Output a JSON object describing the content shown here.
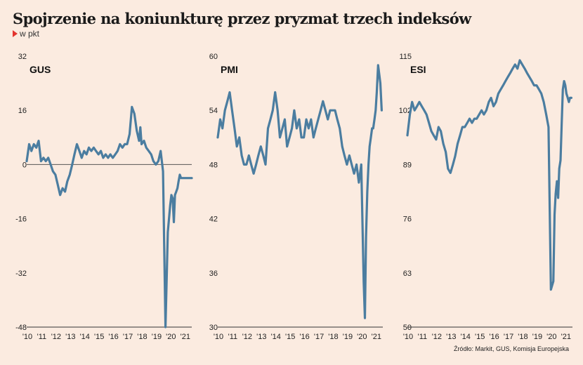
{
  "title": "Spojrzenie na koniunkturę przez pryzmat trzech indeksów",
  "unit": "w pkt",
  "source": "Źródło: Markit, GUS, Komisja Europejska",
  "colors": {
    "line": "#4b7da0",
    "background": "#fbebe0",
    "baseline": "#555555",
    "accent": "#e3342f"
  },
  "chart_data": [
    {
      "type": "line",
      "label": "GUS",
      "yticks": [
        "32",
        "16",
        "0",
        "-16",
        "-32",
        "-48"
      ],
      "ylim": [
        -48,
        32
      ],
      "xticks": [
        "'10",
        "'11",
        "'12",
        "'13",
        "'14",
        "'15",
        "'16",
        "'17",
        "'18",
        "'19",
        "'20",
        "'21"
      ],
      "baseline": 0,
      "series": [
        {
          "x": [
            2010.0,
            2010.17,
            2010.33,
            2010.5,
            2010.67,
            2010.83,
            2011.0,
            2011.17,
            2011.33,
            2011.5,
            2011.67,
            2011.83,
            2012.0,
            2012.17,
            2012.33,
            2012.5,
            2012.67,
            2012.83,
            2013.0,
            2013.17,
            2013.33,
            2013.5,
            2013.67,
            2013.83,
            2014.0,
            2014.17,
            2014.33,
            2014.5,
            2014.67,
            2014.83,
            2015.0,
            2015.17,
            2015.33,
            2015.5,
            2015.67,
            2015.83,
            2016.0,
            2016.17,
            2016.33,
            2016.5,
            2016.67,
            2016.83,
            2017.0,
            2017.17,
            2017.33,
            2017.5,
            2017.67,
            2017.83,
            2017.92,
            2018.0,
            2018.17,
            2018.33,
            2018.5,
            2018.67,
            2018.83,
            2019.0,
            2019.17,
            2019.33,
            2019.5,
            2019.67,
            2019.83,
            2020.0,
            2020.08,
            2020.17,
            2020.25,
            2020.33,
            2020.42,
            2020.5,
            2020.58,
            2020.67,
            2020.75,
            2020.83,
            2020.92,
            2021.0,
            2021.17,
            2021.33,
            2021.5
          ],
          "values": [
            1,
            6,
            4,
            6,
            5,
            7,
            1,
            2,
            1,
            2,
            0,
            -2,
            -3,
            -6,
            -9,
            -7,
            -8,
            -5,
            -3,
            0,
            3,
            6,
            4,
            2,
            4,
            3,
            5,
            4,
            5,
            4,
            3,
            4,
            2,
            3,
            2,
            3,
            2,
            3,
            4,
            6,
            5,
            6,
            6,
            9,
            17,
            15,
            10,
            7,
            11,
            6,
            7,
            5,
            4,
            3,
            1,
            0,
            1,
            4,
            -2,
            -48,
            -20,
            -12,
            -9,
            -10,
            -17,
            -9,
            -8,
            -7,
            -5,
            -3,
            -4,
            -4,
            -4,
            -4,
            -4,
            -4,
            -4
          ]
        }
      ]
    },
    {
      "type": "line",
      "label": "PMI",
      "yticks": [
        "60",
        "54",
        "48",
        "42",
        "36",
        "30"
      ],
      "ylim": [
        30,
        60
      ],
      "xticks": [
        "'10",
        "'11",
        "'12",
        "'13",
        "'14",
        "'15",
        "'16",
        "'17",
        "'18",
        "'19",
        "'20",
        "'21"
      ],
      "series": [
        {
          "x": [
            2010.0,
            2010.17,
            2010.33,
            2010.5,
            2010.67,
            2010.83,
            2011.0,
            2011.17,
            2011.33,
            2011.5,
            2011.67,
            2011.83,
            2012.0,
            2012.17,
            2012.33,
            2012.5,
            2012.67,
            2012.83,
            2013.0,
            2013.17,
            2013.33,
            2013.5,
            2013.67,
            2013.83,
            2014.0,
            2014.17,
            2014.33,
            2014.5,
            2014.67,
            2014.83,
            2015.0,
            2015.17,
            2015.33,
            2015.5,
            2015.67,
            2015.83,
            2016.0,
            2016.17,
            2016.33,
            2016.5,
            2016.67,
            2016.83,
            2017.0,
            2017.17,
            2017.33,
            2017.5,
            2017.67,
            2017.83,
            2018.0,
            2018.17,
            2018.33,
            2018.5,
            2018.67,
            2018.83,
            2019.0,
            2019.17,
            2019.33,
            2019.5,
            2019.67,
            2019.83,
            2020.0,
            2020.17,
            2020.25,
            2020.33,
            2020.42,
            2020.5,
            2020.58,
            2020.67,
            2020.75,
            2020.83,
            2020.92,
            2021.0,
            2021.08,
            2021.17,
            2021.25,
            2021.33,
            2021.42
          ],
          "values": [
            51,
            53,
            52,
            54,
            55,
            56,
            54,
            52,
            50,
            51,
            49,
            48,
            48,
            49,
            48,
            47,
            48,
            49,
            50,
            49,
            48,
            52,
            53,
            54,
            56,
            54,
            51,
            52,
            53,
            50,
            51,
            52,
            54,
            52,
            53,
            51,
            51,
            53,
            52,
            53,
            51,
            52,
            53,
            54,
            55,
            54,
            53,
            54,
            54,
            54,
            53,
            52,
            50,
            49,
            48,
            49,
            48,
            47,
            48,
            46,
            48,
            35,
            31,
            40,
            45,
            48,
            50,
            51,
            52,
            52,
            53,
            54,
            56,
            59,
            58,
            57,
            54
          ]
        }
      ]
    },
    {
      "type": "line",
      "label": "ESI",
      "yticks": [
        "115",
        "102",
        "89",
        "76",
        "63",
        "50"
      ],
      "ylim": [
        50,
        115
      ],
      "xticks": [
        "'10",
        "'11",
        "'12",
        "'13",
        "'14",
        "'15",
        "'16",
        "'17",
        "'18",
        "'19",
        "'20",
        "'21"
      ],
      "series": [
        {
          "x": [
            2010.0,
            2010.17,
            2010.33,
            2010.5,
            2010.67,
            2010.83,
            2011.0,
            2011.17,
            2011.33,
            2011.5,
            2011.67,
            2011.83,
            2012.0,
            2012.17,
            2012.33,
            2012.5,
            2012.67,
            2012.83,
            2013.0,
            2013.17,
            2013.33,
            2013.5,
            2013.67,
            2013.83,
            2014.0,
            2014.17,
            2014.33,
            2014.5,
            2014.67,
            2014.83,
            2015.0,
            2015.17,
            2015.33,
            2015.5,
            2015.67,
            2015.83,
            2016.0,
            2016.17,
            2016.33,
            2016.5,
            2016.67,
            2016.83,
            2017.0,
            2017.17,
            2017.33,
            2017.5,
            2017.67,
            2017.83,
            2018.0,
            2018.17,
            2018.33,
            2018.5,
            2018.67,
            2018.83,
            2019.0,
            2019.17,
            2019.33,
            2019.5,
            2019.67,
            2019.83,
            2020.0,
            2020.17,
            2020.25,
            2020.33,
            2020.42,
            2020.5,
            2020.58,
            2020.67,
            2020.75,
            2020.83,
            2020.92,
            2021.0,
            2021.08,
            2021.17,
            2021.25,
            2021.33,
            2021.42
          ],
          "values": [
            96,
            101,
            104,
            102,
            103,
            104,
            103,
            102,
            101,
            99,
            97,
            96,
            95,
            98,
            97,
            94,
            92,
            88,
            87,
            89,
            91,
            94,
            96,
            98,
            98,
            99,
            100,
            99,
            100,
            100,
            101,
            102,
            101,
            102,
            104,
            105,
            103,
            104,
            106,
            107,
            108,
            109,
            110,
            111,
            112,
            113,
            112,
            114,
            113,
            112,
            111,
            110,
            109,
            108,
            108,
            107,
            106,
            104,
            101,
            98,
            59,
            61,
            77,
            82,
            85,
            81,
            88,
            90,
            99,
            107,
            109,
            108,
            106,
            105,
            104,
            105,
            105
          ]
        }
      ]
    }
  ]
}
